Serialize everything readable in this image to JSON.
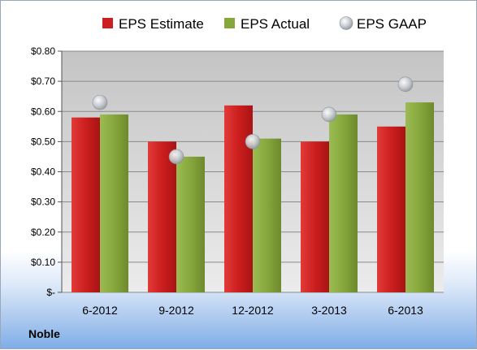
{
  "company": "Noble",
  "chart_data": {
    "type": "bar",
    "title": "",
    "xlabel": "",
    "ylabel": "",
    "categories": [
      "6-2012",
      "9-2012",
      "12-2012",
      "3-2013",
      "6-2013"
    ],
    "series": [
      {
        "name": "EPS Estimate",
        "kind": "bar",
        "color": "#cc2020",
        "values": [
          0.58,
          0.5,
          0.62,
          0.5,
          0.55
        ]
      },
      {
        "name": "EPS Actual",
        "kind": "bar",
        "color": "#86a73c",
        "values": [
          0.59,
          0.45,
          0.51,
          0.59,
          0.63
        ]
      },
      {
        "name": "EPS GAAP",
        "kind": "scatter",
        "color": "#b8bdc4",
        "values": [
          0.63,
          0.45,
          0.5,
          0.59,
          0.69
        ]
      }
    ],
    "ylim": [
      0,
      0.8
    ],
    "yticks": [
      0,
      0.1,
      0.2,
      0.3,
      0.4,
      0.5,
      0.6,
      0.7,
      0.8
    ],
    "ytick_labels": [
      "$-",
      "$0.10",
      "$0.20",
      "$0.30",
      "$0.40",
      "$0.50",
      "$0.60",
      "$0.70",
      "$0.80"
    ],
    "grid": true,
    "legend": "top"
  }
}
